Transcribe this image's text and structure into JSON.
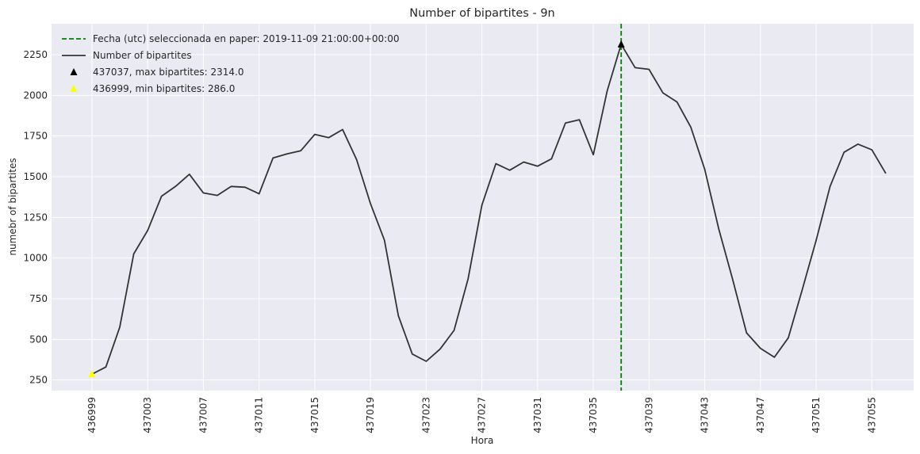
{
  "chart_data": {
    "type": "line",
    "title": "Number of bipartites - 9n",
    "xlabel": "Hora",
    "ylabel": "numebr of bipartites",
    "xlim": [
      436996.1,
      437058.0
    ],
    "ylim": [
      185,
      2440
    ],
    "xticks": [
      436999,
      437003,
      437007,
      437011,
      437015,
      437019,
      437023,
      437027,
      437031,
      437035,
      437039,
      437043,
      437047,
      437051,
      437055
    ],
    "yticks": [
      250,
      500,
      750,
      1000,
      1250,
      1500,
      1750,
      2000,
      2250
    ],
    "grid": true,
    "legend_position": "top-left",
    "series": [
      {
        "name": "Number of bipartites",
        "color": "#333333",
        "x": [
          436999,
          437000,
          437001,
          437002,
          437003,
          437004,
          437005,
          437006,
          437007,
          437008,
          437009,
          437010,
          437011,
          437012,
          437013,
          437014,
          437015,
          437016,
          437017,
          437018,
          437019,
          437020,
          437021,
          437022,
          437023,
          437024,
          437025,
          437026,
          437027,
          437028,
          437029,
          437030,
          437031,
          437032,
          437033,
          437034,
          437035,
          437036,
          437037,
          437038,
          437039,
          437040,
          437041,
          437042,
          437043,
          437044,
          437045,
          437046,
          437047,
          437048,
          437049,
          437050,
          437051,
          437052,
          437053,
          437054,
          437055,
          437056
        ],
        "y": [
          286,
          330,
          575,
          1025,
          1170,
          1380,
          1440,
          1515,
          1400,
          1385,
          1440,
          1435,
          1395,
          1615,
          1640,
          1660,
          1760,
          1740,
          1790,
          1605,
          1335,
          1110,
          645,
          410,
          365,
          440,
          555,
          870,
          1325,
          1580,
          1540,
          1590,
          1565,
          1610,
          1830,
          1850,
          1635,
          2030,
          2314,
          2170,
          2160,
          2015,
          1960,
          1805,
          1545,
          1180,
          870,
          540,
          445,
          390,
          510,
          805,
          1110,
          1440,
          1650,
          1700,
          1665,
          1520
        ]
      }
    ],
    "vline": {
      "name": "Fecha (utc) seleccionada en paper: 2019-11-09 21:00:00+00:00",
      "x": 437037,
      "color": "#008000"
    },
    "markers": [
      {
        "name": "437037, max bipartites: 2314.0",
        "x": 437037,
        "y": 2314,
        "color": "#000000"
      },
      {
        "name": "436999, min bipartites: 286.0",
        "x": 436999,
        "y": 286,
        "color": "#ffff00"
      }
    ]
  }
}
